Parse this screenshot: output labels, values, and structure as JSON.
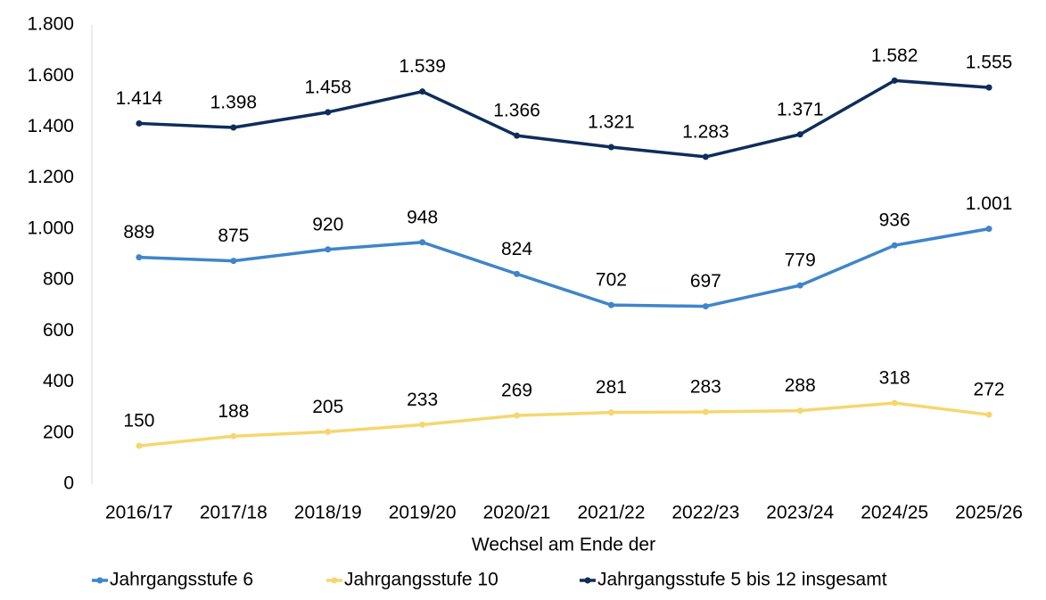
{
  "chart_data": {
    "type": "line",
    "x_label": "Wechsel am Ende der",
    "categories": [
      "2016/17",
      "2017/18",
      "2018/19",
      "2019/20",
      "2020/21",
      "2021/22",
      "2022/23",
      "2023/24",
      "2024/25",
      "2025/26"
    ],
    "series": [
      {
        "name": "Jahrgangsstufe 6",
        "color": "#3f85c9",
        "values": [
          889,
          875,
          920,
          948,
          824,
          702,
          697,
          779,
          936,
          1001
        ],
        "value_labels": [
          "889",
          "875",
          "920",
          "948",
          "824",
          "702",
          "697",
          "779",
          "936",
          "1.001"
        ]
      },
      {
        "name": "Jahrgangsstufe 10",
        "color": "#f5d770",
        "values": [
          150,
          188,
          205,
          233,
          269,
          281,
          283,
          288,
          318,
          272
        ]
      },
      {
        "name": "Jahrgangsstufe 5 bis 12 insgesamt",
        "color": "#0e2d5a",
        "values": [
          1414,
          1398,
          1458,
          1539,
          1366,
          1321,
          1283,
          1371,
          1582,
          1555
        ],
        "value_labels": [
          "1.414",
          "1.398",
          "1.458",
          "1.539",
          "1.366",
          "1.321",
          "1.283",
          "1.371",
          "1.582",
          "1.555"
        ]
      }
    ],
    "ylim": [
      0,
      1800
    ],
    "yticks": [
      0,
      200,
      400,
      600,
      800,
      {
        "value": 1000,
        "label": "1.000"
      },
      {
        "value": 1200,
        "label": "1.200"
      },
      {
        "value": 1400,
        "label": "1.400"
      },
      {
        "value": 1600,
        "label": "1.600"
      },
      {
        "value": 1800,
        "label": "1.800"
      }
    ],
    "grid": false,
    "legend": "bottom"
  }
}
